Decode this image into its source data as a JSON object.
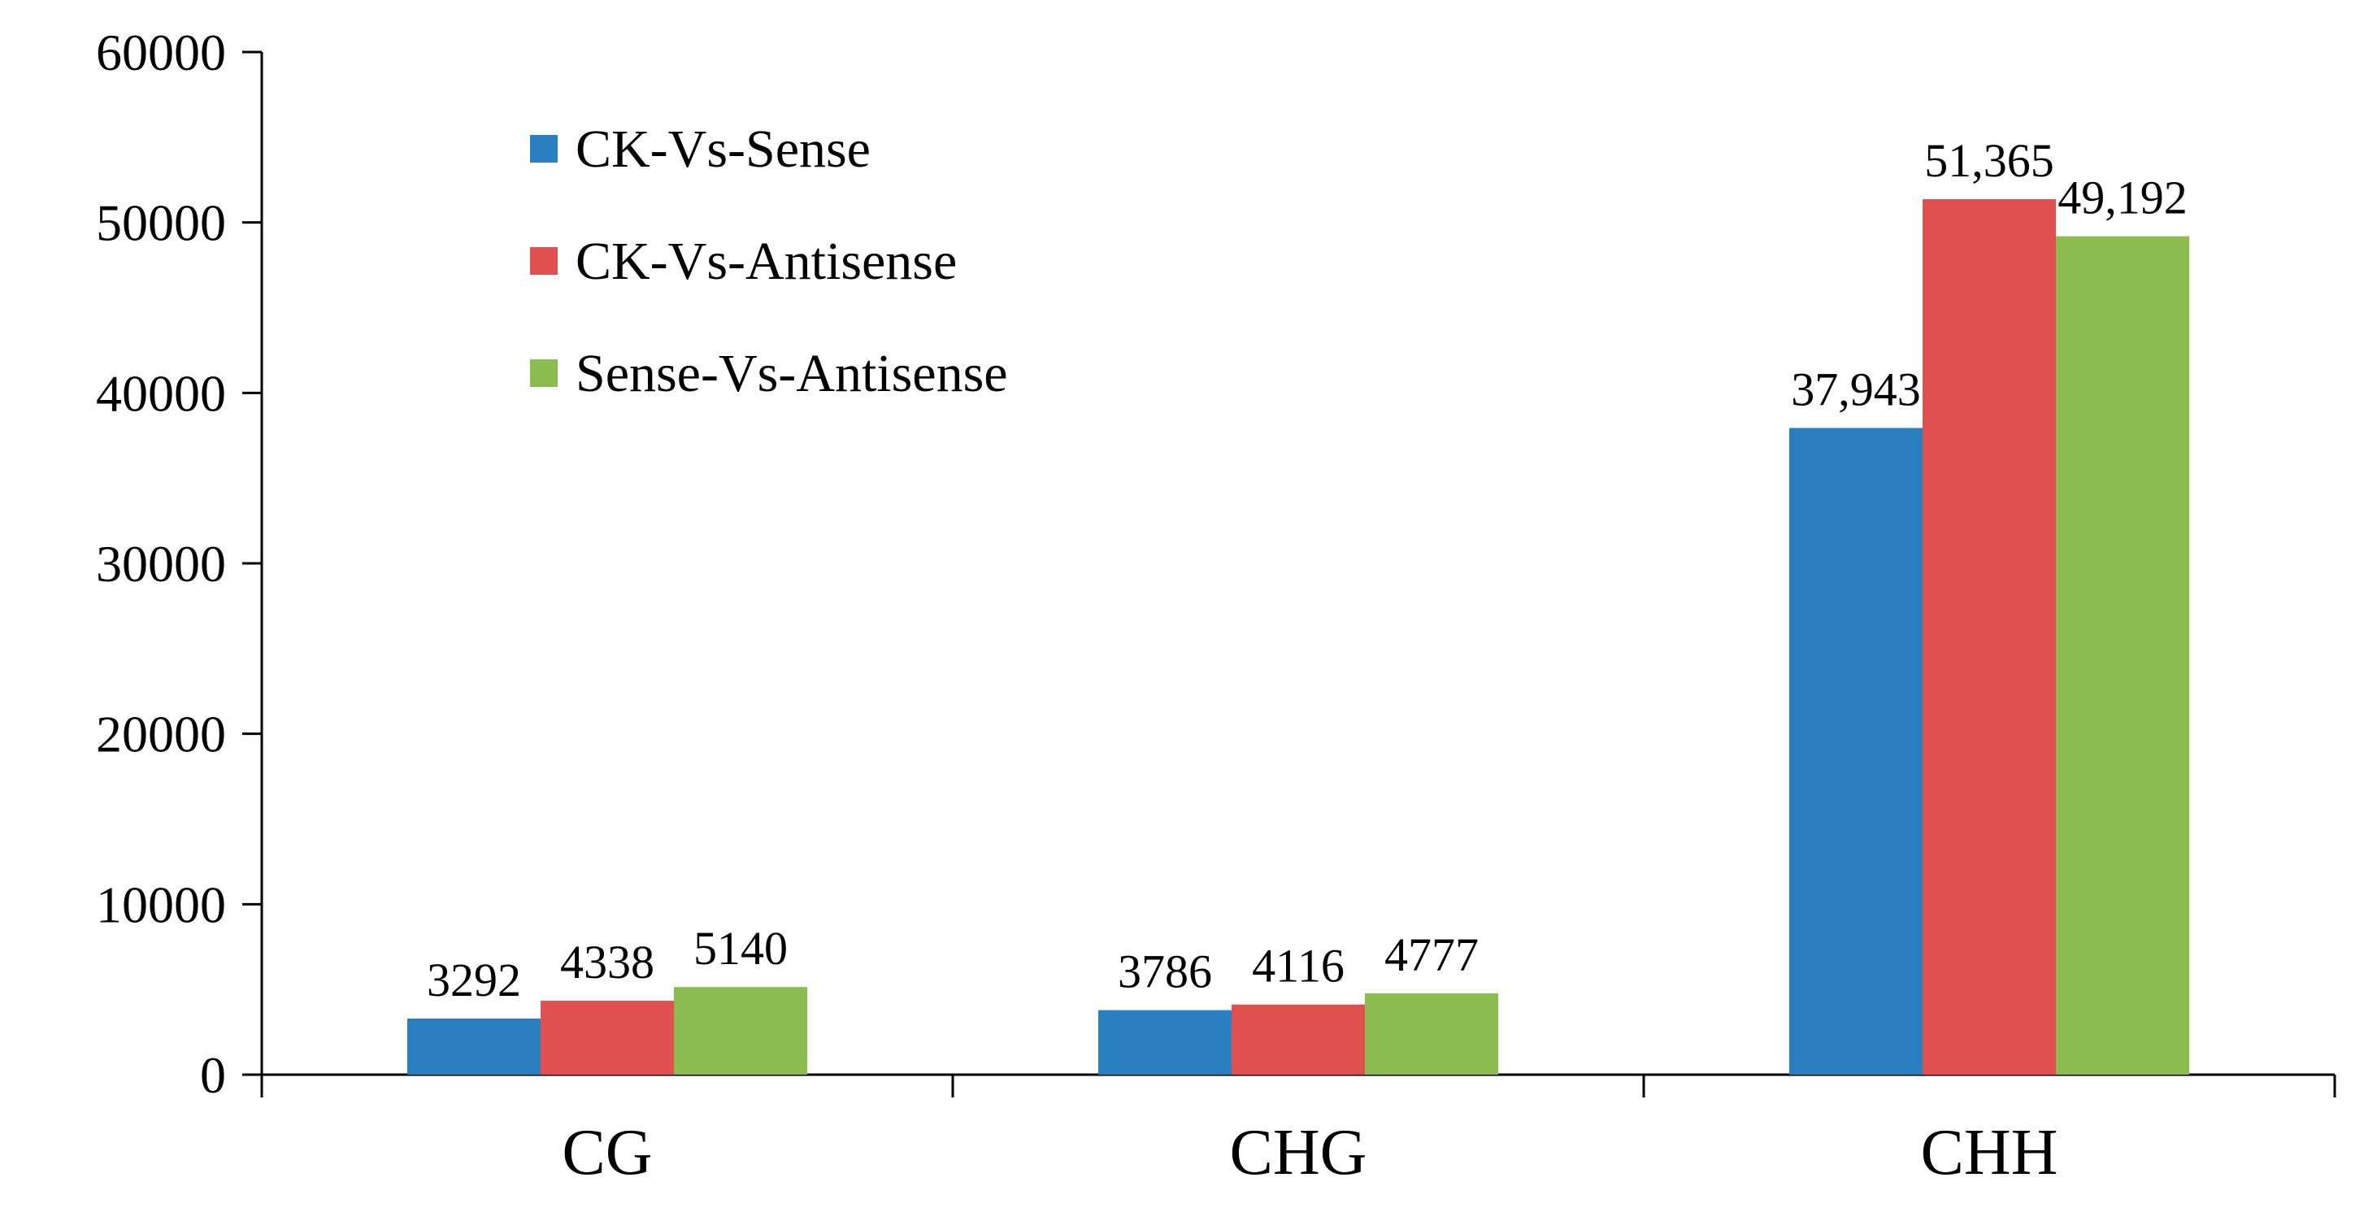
{
  "chart_data": {
    "type": "bar",
    "title": "",
    "xlabel": "",
    "ylabel": "",
    "categories": [
      "CG",
      "CHG",
      "CHH"
    ],
    "series": [
      {
        "name": "CK-Vs-Sense",
        "color": "#2a7fc1",
        "values": [
          3292,
          3786,
          37943
        ],
        "labels": [
          "3292",
          "3786",
          "37,943"
        ]
      },
      {
        "name": "CK-Vs-Antisense",
        "color": "#e0504f",
        "values": [
          4338,
          4116,
          51365
        ],
        "labels": [
          "4338",
          "4116",
          "51,365"
        ]
      },
      {
        "name": "Sense-Vs-Antisense",
        "color": "#8cbc4f",
        "values": [
          5140,
          4777,
          49192
        ],
        "labels": [
          "5140",
          "4777",
          "49,192"
        ]
      }
    ],
    "ylim": [
      0,
      60000
    ],
    "yticks": [
      0,
      10000,
      20000,
      30000,
      40000,
      50000,
      60000
    ],
    "ytick_labels": [
      "0",
      "10000",
      "20000",
      "30000",
      "40000",
      "50000",
      "60000"
    ],
    "grid": false,
    "legend_position": "top-left"
  }
}
